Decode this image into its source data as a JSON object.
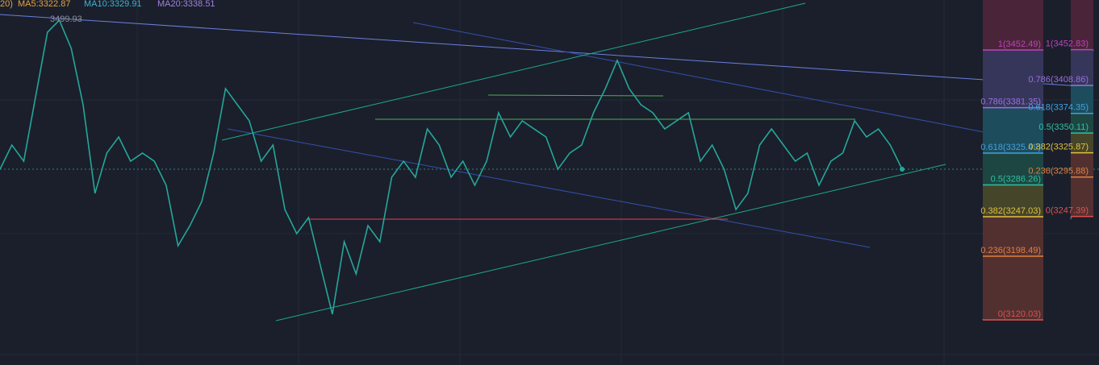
{
  "header": {
    "prefix": "20)",
    "ma5": "MA5:3322.87",
    "ma10": "MA10:3329.91",
    "ma20": "MA20:3338.51",
    "high_label": "3499.93"
  },
  "price_series": {
    "type": "line",
    "color": "#26a69a",
    "values": [
      3305.6,
      3335.4,
      3315.5,
      3394.9,
      3474.3,
      3489.2,
      3454.5,
      3385.0,
      3275.8,
      3325.5,
      3345.3,
      3315.5,
      3325.5,
      3315.5,
      3285.8,
      3211.3,
      3236.1,
      3265.9,
      3325.5,
      3404.9,
      3385.0,
      3365.2,
      3315.5,
      3335.4,
      3256.0,
      3226.2,
      3246.1,
      3186.5,
      3127.0,
      3216.3,
      3176.6,
      3236.1,
      3216.3,
      3295.7,
      3315.5,
      3295.7,
      3355.2,
      3335.4,
      3295.7,
      3315.5,
      3285.8,
      3315.5,
      3375.1,
      3345.3,
      3365.2,
      3355.2,
      3345.3,
      3305.6,
      3325.5,
      3335.4,
      3375.1,
      3404.9,
      3439.6,
      3404.9,
      3385.0,
      3375.1,
      3355.2,
      3365.2,
      3375.1,
      3315.5,
      3335.4,
      3305.6,
      3256.0,
      3275.8,
      3335.4,
      3355.2,
      3335.4,
      3315.5,
      3325.5,
      3285.8,
      3315.5,
      3325.5,
      3365.2,
      3345.3,
      3355.2,
      3335.4,
      3305.6
    ]
  },
  "fib_left": {
    "levels": [
      {
        "label": "1(3452.49)",
        "price": 3452.49,
        "color": "#c040c0",
        "band": "#4e2566"
      },
      {
        "label": "0.786(3381.35)",
        "price": 3381.35,
        "color": "#9a70e0",
        "band": "#36365a"
      },
      {
        "label": "0.618(3325.49)",
        "price": 3325.49,
        "color": "#40a0e0",
        "band": "#1d4c5c"
      },
      {
        "label": "0.5(3286.26)",
        "price": 3286.26,
        "color": "#30c0a0",
        "band": "#1d4642"
      },
      {
        "label": "0.382(3247.03)",
        "price": 3247.03,
        "color": "#e0c040",
        "band": "#45452a"
      },
      {
        "label": "0.236(3198.49)",
        "price": 3198.49,
        "color": "#e08040",
        "band": "#523030"
      },
      {
        "label": "0(3120.03)",
        "price": 3120.03,
        "color": "#e05050",
        "band": "#523030"
      }
    ]
  },
  "fib_right": {
    "levels": [
      {
        "label": "1(3452.83)",
        "price": 3452.83,
        "color": "#c040c0",
        "band": "#4e2566"
      },
      {
        "label": "0.786(3408.86)",
        "price": 3408.86,
        "color": "#9a70e0",
        "band": "#36365a"
      },
      {
        "label": "0.618(3374.35)",
        "price": 3374.35,
        "color": "#40a0e0",
        "band": "#1d4c5c"
      },
      {
        "label": "0.5(3350.11)",
        "price": 3350.11,
        "color": "#30c0a0",
        "band": "#1d4642"
      },
      {
        "label": "0.382(3325.87)",
        "price": 3325.87,
        "color": "#e0c040",
        "band": "#45452a"
      },
      {
        "label": "0.236(3295.88)",
        "price": 3295.88,
        "color": "#e08040",
        "band": "#523030"
      },
      {
        "label": "0(3247.39)",
        "price": 3247.39,
        "color": "#e05050",
        "band": "#523030"
      }
    ]
  }
}
